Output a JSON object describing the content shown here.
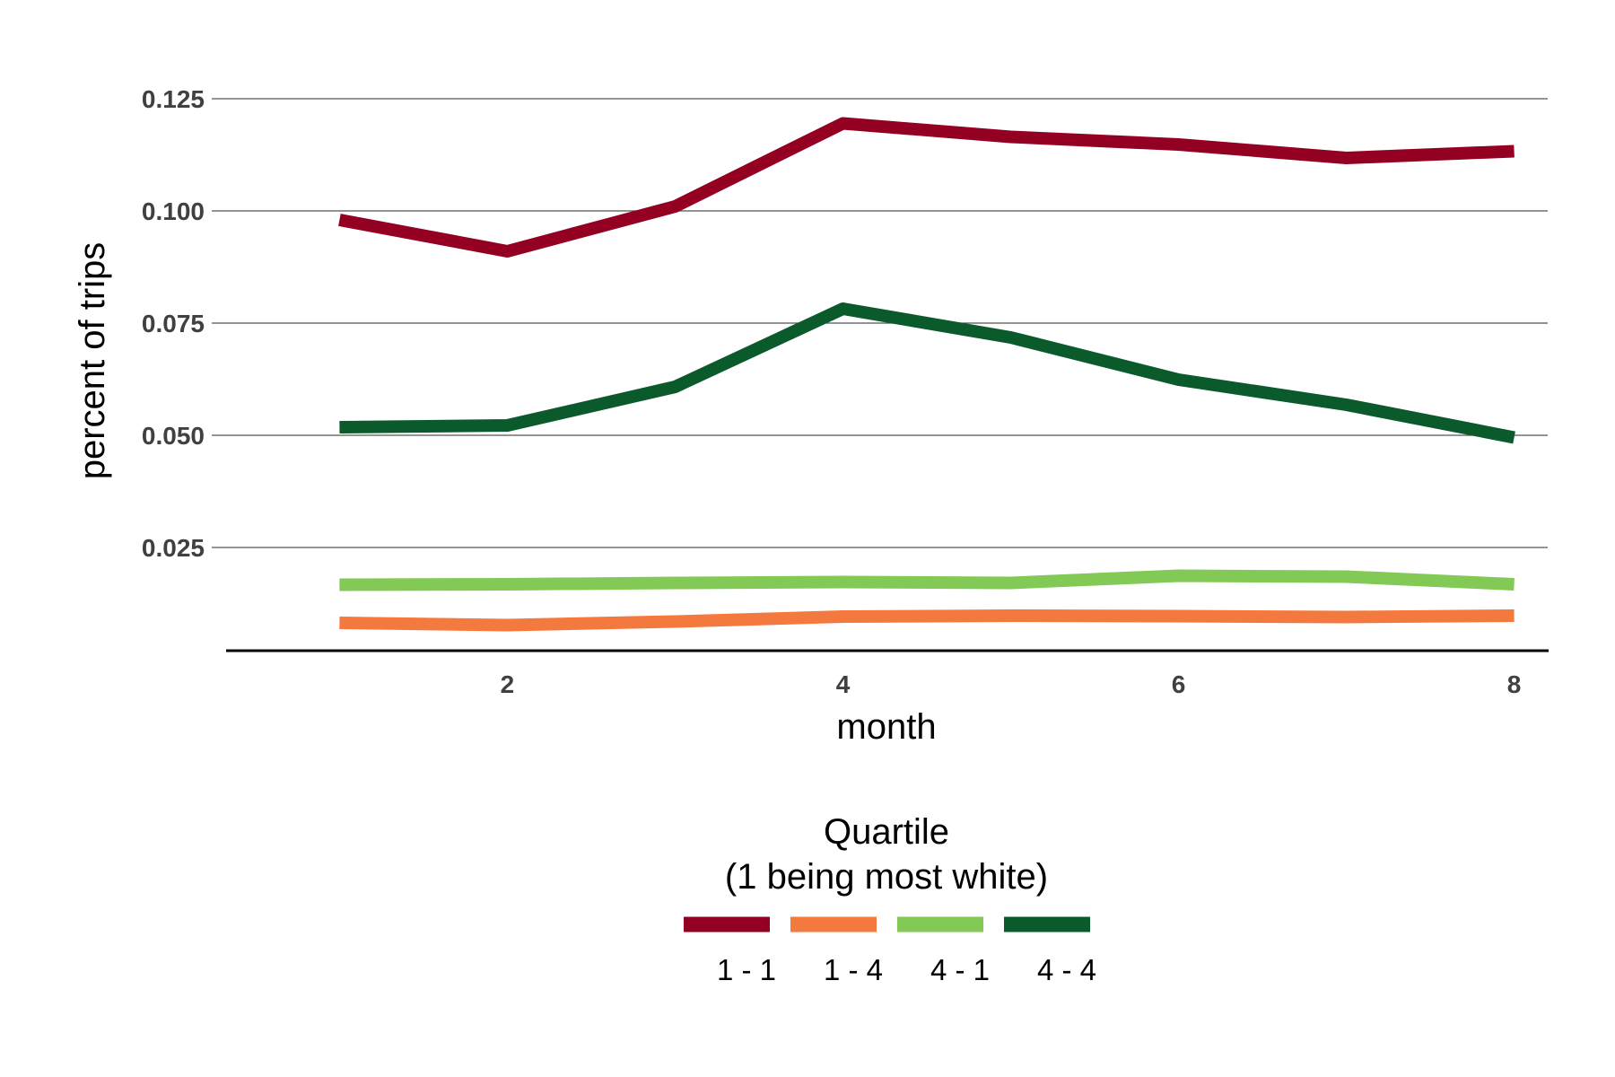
{
  "chart_data": {
    "type": "line",
    "xlabel": "month",
    "ylabel": "percent of trips",
    "x": [
      1,
      2,
      3,
      4,
      5,
      6,
      7,
      8
    ],
    "xticks": [
      2,
      4,
      6,
      8
    ],
    "xlim": [
      0.34,
      8.2
    ],
    "yticks": [
      0.025,
      0.05,
      0.075,
      0.1,
      0.125
    ],
    "ytick_labels": [
      "0.025",
      "0.050",
      "0.075",
      "0.100",
      "0.125"
    ],
    "ylim": [
      0.002,
      0.135
    ],
    "grid": "horizontal",
    "legend": {
      "position": "bottom",
      "title_line1": "Quartile",
      "title_line2": "(1 being most white)"
    },
    "series": [
      {
        "name": "1 - 1",
        "color": "#940021",
        "values": [
          0.098,
          0.091,
          0.101,
          0.1195,
          0.1165,
          0.1148,
          0.1118,
          0.1133
        ]
      },
      {
        "name": "1 - 4",
        "color": "#F4793F",
        "values": [
          0.0082,
          0.0077,
          0.0085,
          0.0096,
          0.0098,
          0.0097,
          0.0095,
          0.0098
        ]
      },
      {
        "name": "4 - 1",
        "color": "#83C956",
        "values": [
          0.0167,
          0.0168,
          0.0171,
          0.0173,
          0.0171,
          0.0187,
          0.0185,
          0.0168
        ]
      },
      {
        "name": "4 - 4",
        "color": "#0B5A2B",
        "values": [
          0.0518,
          0.0522,
          0.0608,
          0.0782,
          0.0718,
          0.0624,
          0.0568,
          0.0495
        ]
      }
    ]
  }
}
